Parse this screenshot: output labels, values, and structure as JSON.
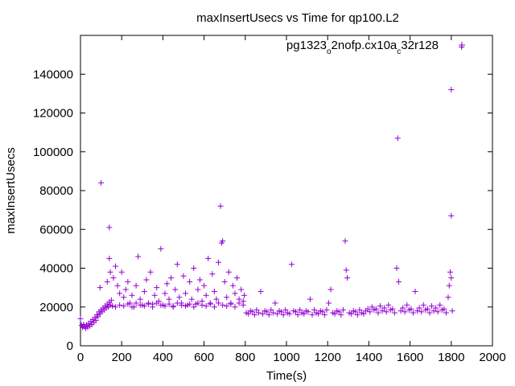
{
  "chart_data": {
    "type": "scatter",
    "title": "maxInsertUsecs vs Time for qp100.L2",
    "xlabel": "Time(s)",
    "ylabel": "maxInsertUsecs",
    "xlim": [
      0,
      2000
    ],
    "ylim": [
      0,
      160000
    ],
    "x_ticks": [
      0,
      200,
      400,
      600,
      800,
      1000,
      1200,
      1400,
      1600,
      1800,
      2000
    ],
    "y_ticks": [
      0,
      20000,
      40000,
      60000,
      80000,
      100000,
      120000,
      140000
    ],
    "x_tick_labels": [
      "0",
      "200",
      "400",
      "600",
      "800",
      "1000",
      "1200",
      "1400",
      "1600",
      "1800",
      "2000"
    ],
    "y_tick_labels": [
      "0",
      "20000",
      "40000",
      "60000",
      "80000",
      "100000",
      "120000",
      "140000"
    ],
    "grid": false,
    "legend_position": "top-right",
    "legend": {
      "parts": [
        {
          "text": "pg1323",
          "sub": false
        },
        {
          "text": "o",
          "sub": true
        },
        {
          "text": "2nofp.cx10a",
          "sub": false
        },
        {
          "text": "c",
          "sub": true
        },
        {
          "text": "32r128",
          "sub": false
        }
      ]
    },
    "marker": "+",
    "color": "#9400d3",
    "series": [
      {
        "points": [
          [
            0,
            14000
          ],
          [
            5,
            10500
          ],
          [
            10,
            9500
          ],
          [
            15,
            11000
          ],
          [
            20,
            10000
          ],
          [
            25,
            9000
          ],
          [
            30,
            10800
          ],
          [
            35,
            9600
          ],
          [
            40,
            11500
          ],
          [
            45,
            10200
          ],
          [
            50,
            12500
          ],
          [
            55,
            11000
          ],
          [
            60,
            13500
          ],
          [
            65,
            12000
          ],
          [
            70,
            14500
          ],
          [
            75,
            13000
          ],
          [
            80,
            16000
          ],
          [
            85,
            15000
          ],
          [
            90,
            17500
          ],
          [
            95,
            16500
          ],
          [
            100,
            18500
          ],
          [
            105,
            17500
          ],
          [
            110,
            19500
          ],
          [
            115,
            18500
          ],
          [
            120,
            20500
          ],
          [
            125,
            19500
          ],
          [
            130,
            21500
          ],
          [
            135,
            20000
          ],
          [
            140,
            22500
          ],
          [
            145,
            21000
          ],
          [
            150,
            23500
          ],
          [
            155,
            20500
          ],
          [
            95,
            30000
          ],
          [
            100,
            84000
          ],
          [
            130,
            33000
          ],
          [
            140,
            61000
          ],
          [
            140,
            45000
          ],
          [
            145,
            38000
          ],
          [
            160,
            35000
          ],
          [
            170,
            41000
          ],
          [
            180,
            31000
          ],
          [
            190,
            27000
          ],
          [
            200,
            38000
          ],
          [
            210,
            25000
          ],
          [
            220,
            29000
          ],
          [
            230,
            33000
          ],
          [
            240,
            22000
          ],
          [
            250,
            26000
          ],
          [
            260,
            20000
          ],
          [
            270,
            31000
          ],
          [
            280,
            46000
          ],
          [
            290,
            24000
          ],
          [
            300,
            21000
          ],
          [
            310,
            28000
          ],
          [
            320,
            34000
          ],
          [
            330,
            22000
          ],
          [
            340,
            38000
          ],
          [
            350,
            21500
          ],
          [
            360,
            26000
          ],
          [
            370,
            30000
          ],
          [
            380,
            23000
          ],
          [
            390,
            50000
          ],
          [
            400,
            21000
          ],
          [
            410,
            27000
          ],
          [
            420,
            32000
          ],
          [
            430,
            24000
          ],
          [
            440,
            35000
          ],
          [
            450,
            20500
          ],
          [
            460,
            29000
          ],
          [
            470,
            42000
          ],
          [
            480,
            25000
          ],
          [
            490,
            22000
          ],
          [
            500,
            36000
          ],
          [
            510,
            27000
          ],
          [
            520,
            21000
          ],
          [
            530,
            33000
          ],
          [
            540,
            24000
          ],
          [
            550,
            40000
          ],
          [
            560,
            21500
          ],
          [
            570,
            29000
          ],
          [
            580,
            34000
          ],
          [
            590,
            23000
          ],
          [
            600,
            31000
          ],
          [
            610,
            26000
          ],
          [
            620,
            45000
          ],
          [
            630,
            22000
          ],
          [
            640,
            37000
          ],
          [
            650,
            28000
          ],
          [
            660,
            24000
          ],
          [
            670,
            43000
          ],
          [
            680,
            72000
          ],
          [
            685,
            53000
          ],
          [
            690,
            54000
          ],
          [
            700,
            33000
          ],
          [
            710,
            25000
          ],
          [
            720,
            38000
          ],
          [
            730,
            22000
          ],
          [
            740,
            31000
          ],
          [
            750,
            27000
          ],
          [
            760,
            35000
          ],
          [
            770,
            24000
          ],
          [
            780,
            29000
          ],
          [
            790,
            23000
          ],
          [
            795,
            26000
          ],
          [
            170,
            20000
          ],
          [
            190,
            21000
          ],
          [
            210,
            20500
          ],
          [
            230,
            21500
          ],
          [
            250,
            20000
          ],
          [
            270,
            22000
          ],
          [
            290,
            21000
          ],
          [
            310,
            20500
          ],
          [
            330,
            21500
          ],
          [
            350,
            20000
          ],
          [
            370,
            22000
          ],
          [
            390,
            21000
          ],
          [
            410,
            20500
          ],
          [
            430,
            21500
          ],
          [
            450,
            20000
          ],
          [
            470,
            22000
          ],
          [
            490,
            21000
          ],
          [
            510,
            20500
          ],
          [
            530,
            21500
          ],
          [
            550,
            20000
          ],
          [
            570,
            22000
          ],
          [
            590,
            21000
          ],
          [
            610,
            20500
          ],
          [
            630,
            21500
          ],
          [
            650,
            20000
          ],
          [
            670,
            22000
          ],
          [
            690,
            21000
          ],
          [
            710,
            20500
          ],
          [
            730,
            21500
          ],
          [
            750,
            20000
          ],
          [
            770,
            22000
          ],
          [
            790,
            21000
          ],
          [
            805,
            17000
          ],
          [
            815,
            16500
          ],
          [
            825,
            18000
          ],
          [
            835,
            17500
          ],
          [
            845,
            16000
          ],
          [
            855,
            18500
          ],
          [
            865,
            17000
          ],
          [
            875,
            28000
          ],
          [
            885,
            16500
          ],
          [
            895,
            18000
          ],
          [
            905,
            17500
          ],
          [
            915,
            16000
          ],
          [
            925,
            18500
          ],
          [
            935,
            17000
          ],
          [
            945,
            22000
          ],
          [
            955,
            16500
          ],
          [
            965,
            18000
          ],
          [
            975,
            17500
          ],
          [
            985,
            16000
          ],
          [
            995,
            18500
          ],
          [
            1005,
            17000
          ],
          [
            1015,
            16500
          ],
          [
            1025,
            42000
          ],
          [
            1035,
            18000
          ],
          [
            1045,
            17500
          ],
          [
            1055,
            16000
          ],
          [
            1065,
            18500
          ],
          [
            1075,
            17000
          ],
          [
            1085,
            16500
          ],
          [
            1095,
            18000
          ],
          [
            1105,
            17500
          ],
          [
            1115,
            24000
          ],
          [
            1125,
            16000
          ],
          [
            1135,
            18500
          ],
          [
            1145,
            17000
          ],
          [
            1155,
            16500
          ],
          [
            1165,
            18000
          ],
          [
            1175,
            17500
          ],
          [
            1185,
            16000
          ],
          [
            1195,
            18500
          ],
          [
            1205,
            22000
          ],
          [
            1215,
            29000
          ],
          [
            1225,
            17000
          ],
          [
            1235,
            16500
          ],
          [
            1245,
            18000
          ],
          [
            1255,
            17500
          ],
          [
            1265,
            16000
          ],
          [
            1275,
            18500
          ],
          [
            1285,
            54000
          ],
          [
            1290,
            39000
          ],
          [
            1295,
            35000
          ],
          [
            1305,
            17000
          ],
          [
            1315,
            16500
          ],
          [
            1325,
            18000
          ],
          [
            1335,
            17500
          ],
          [
            1345,
            16000
          ],
          [
            1355,
            18500
          ],
          [
            1365,
            17000
          ],
          [
            1375,
            16500
          ],
          [
            1385,
            18000
          ],
          [
            1395,
            19000
          ],
          [
            1405,
            17500
          ],
          [
            1415,
            20000
          ],
          [
            1425,
            18500
          ],
          [
            1435,
            19000
          ],
          [
            1445,
            17000
          ],
          [
            1455,
            20500
          ],
          [
            1465,
            18000
          ],
          [
            1475,
            19500
          ],
          [
            1485,
            17500
          ],
          [
            1495,
            21000
          ],
          [
            1505,
            18500
          ],
          [
            1515,
            19000
          ],
          [
            1525,
            17000
          ],
          [
            1535,
            40000
          ],
          [
            1540,
            107000
          ],
          [
            1545,
            33000
          ],
          [
            1555,
            18000
          ],
          [
            1565,
            19500
          ],
          [
            1575,
            17500
          ],
          [
            1585,
            21000
          ],
          [
            1595,
            18500
          ],
          [
            1605,
            19000
          ],
          [
            1615,
            17000
          ],
          [
            1625,
            28000
          ],
          [
            1635,
            18000
          ],
          [
            1645,
            19500
          ],
          [
            1655,
            17500
          ],
          [
            1665,
            21000
          ],
          [
            1675,
            18500
          ],
          [
            1685,
            19000
          ],
          [
            1695,
            17000
          ],
          [
            1705,
            20500
          ],
          [
            1715,
            18000
          ],
          [
            1725,
            19500
          ],
          [
            1735,
            17500
          ],
          [
            1745,
            21000
          ],
          [
            1755,
            18500
          ],
          [
            1765,
            19000
          ],
          [
            1775,
            17000
          ],
          [
            1785,
            25000
          ],
          [
            1790,
            31000
          ],
          [
            1795,
            38000
          ],
          [
            1800,
            67000
          ],
          [
            1800,
            132000
          ],
          [
            1800,
            35000
          ],
          [
            1805,
            18000
          ],
          [
            1850,
            154000
          ]
        ]
      }
    ]
  }
}
